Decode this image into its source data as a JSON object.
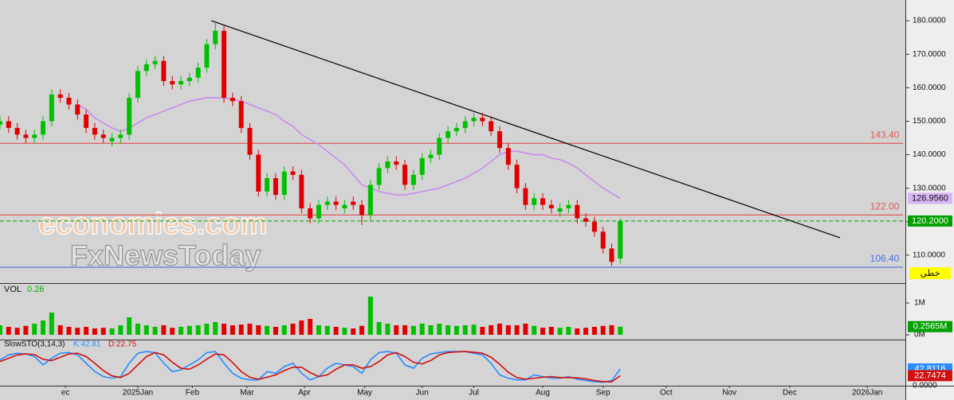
{
  "chart_data": [
    {
      "type": "candlestick",
      "x": [
        0,
        3,
        6,
        9,
        12,
        15,
        18,
        21,
        24,
        27,
        30,
        33,
        36,
        39,
        42,
        45,
        48,
        51,
        54,
        57,
        60,
        63,
        66,
        69,
        72,
        75,
        78,
        81,
        84,
        87,
        90,
        93,
        96,
        99,
        102,
        105,
        108,
        111,
        114,
        117,
        120,
        123,
        126,
        129,
        132,
        135,
        138,
        141,
        144,
        147,
        150,
        153,
        156,
        159,
        162,
        165,
        168,
        171,
        174,
        177,
        180,
        183,
        186,
        189,
        192,
        195,
        198,
        201,
        204,
        207,
        210,
        213,
        216
      ],
      "open": [
        149,
        150,
        148,
        146,
        145,
        146,
        150,
        158,
        157,
        155,
        152,
        148,
        146,
        144,
        145,
        146,
        157,
        165,
        167,
        168,
        162,
        161,
        162,
        163,
        166,
        173,
        177,
        157,
        156,
        148,
        140,
        129,
        133,
        128,
        135,
        134,
        124,
        121,
        125,
        126,
        124,
        126,
        125,
        122,
        131,
        136,
        138,
        137,
        131,
        134,
        139,
        140,
        145,
        147,
        148,
        150,
        151,
        150,
        147,
        142,
        137,
        130,
        125,
        127,
        125,
        123,
        124,
        125,
        121,
        120,
        117,
        112,
        109
      ],
      "high": [
        151.5,
        151.5,
        149.5,
        147.5,
        147.5,
        151.5,
        159.5,
        159.5,
        158.5,
        156.5,
        153.5,
        149.5,
        147.5,
        146.5,
        147.5,
        158.5,
        166.5,
        168.5,
        169.5,
        169.5,
        163.5,
        163.5,
        164.5,
        167.5,
        174.5,
        180,
        178.5,
        158.5,
        157.5,
        149.5,
        141.5,
        134.5,
        134.5,
        136.5,
        136.5,
        135.5,
        125.5,
        126.5,
        127.5,
        127.5,
        126.5,
        127.5,
        126.5,
        132.5,
        137.5,
        139.5,
        139.5,
        138.5,
        135.5,
        140.5,
        141.5,
        146.5,
        148.5,
        149.5,
        151.5,
        152.5,
        152.5,
        151.5,
        148.5,
        143.5,
        138.5,
        131.5,
        128.5,
        128.5,
        126.5,
        125.5,
        126.5,
        126.5,
        122.5,
        121.5,
        118.5,
        113.5,
        121
      ],
      "low": [
        147.5,
        146.5,
        144.5,
        143.5,
        143.5,
        144.5,
        148.5,
        155.5,
        153.5,
        150.5,
        146.5,
        144.5,
        143.5,
        142.5,
        143.5,
        144.5,
        155.5,
        163.5,
        165.5,
        160.5,
        159.5,
        159.5,
        160.5,
        161.5,
        164.5,
        171.5,
        155.5,
        154.5,
        146.5,
        138.5,
        127.5,
        127.5,
        126.5,
        126.5,
        132.5,
        122.5,
        119.5,
        119.5,
        123.5,
        123.5,
        122.5,
        123.5,
        119,
        120.5,
        129.5,
        134.5,
        135.5,
        129.5,
        129.5,
        132.5,
        137.5,
        138.5,
        143.5,
        145.5,
        146.5,
        148.5,
        148.5,
        145.5,
        140.5,
        135.5,
        128.5,
        123.5,
        123.5,
        123.5,
        122.5,
        121.5,
        122.5,
        119.5,
        118.5,
        115.5,
        110.5,
        106.8,
        107.5
      ],
      "close": [
        150,
        148,
        146,
        145,
        146,
        150,
        158,
        157,
        155,
        152,
        148,
        146,
        145,
        145,
        146,
        157,
        165,
        167,
        168,
        162,
        161,
        162,
        163,
        166,
        173,
        177,
        157,
        156,
        148,
        140,
        129,
        133,
        128,
        135,
        134,
        124,
        121,
        125,
        126,
        125,
        125,
        125,
        122,
        131,
        136,
        138,
        137,
        131,
        134,
        139,
        140,
        145,
        147,
        148,
        150,
        151,
        150,
        147,
        142,
        137,
        130,
        125,
        127,
        125,
        124,
        124,
        125,
        121,
        120,
        117,
        112,
        108,
        120.2
      ],
      "up_color": "#00c000",
      "down_color": "#e00000",
      "ma": {
        "color": "#c88cf0",
        "values": [
          null,
          null,
          null,
          null,
          null,
          null,
          null,
          null,
          null,
          155,
          153.5,
          151,
          149.5,
          148,
          147,
          148,
          149.5,
          151,
          152,
          153,
          154,
          155,
          156,
          156.5,
          157,
          157,
          157,
          156.5,
          156,
          155,
          154,
          153,
          152,
          150,
          148.5,
          146,
          144.5,
          143,
          141,
          139,
          137,
          134,
          131,
          130,
          129,
          128.5,
          128,
          128,
          128.5,
          129,
          129.5,
          130,
          131,
          132,
          133,
          134.5,
          136,
          138,
          140,
          141,
          141,
          140.5,
          140,
          140,
          139,
          138.5,
          137.5,
          136,
          134,
          132,
          130,
          128.5,
          126.956
        ]
      },
      "ma_marker": {
        "value": 126.956,
        "label": "126.9560",
        "color": "#d6b4f5"
      },
      "last_price": {
        "value": 120.2,
        "label": "120.2000",
        "color": "#00a000"
      },
      "levels": [
        {
          "value": 143.4,
          "label": "143.40",
          "color": "#e05a5a"
        },
        {
          "value": 122,
          "label": "122.00",
          "color": "#e05a5a"
        },
        {
          "value": 106.4,
          "label": "106.40",
          "color": "#4a6fe0"
        }
      ],
      "trendline": {
        "x": [
          73.6,
          292.5
        ],
        "y": [
          180,
          115.2
        ]
      },
      "mode_label": "خطي",
      "watermark": [
        "economies.com",
        "FxNewsToday"
      ],
      "xlim": [
        0,
        315
      ],
      "ylim": [
        101.9,
        186.2
      ],
      "yticks": [
        {
          "value": 110,
          "label": "110.0000"
        },
        {
          "value": 120,
          "label": "120.0000"
        },
        {
          "value": 130,
          "label": "130.0000"
        },
        {
          "value": 140,
          "label": "140.0000"
        },
        {
          "value": 150,
          "label": "150.0000"
        },
        {
          "value": 160,
          "label": "160.0000"
        },
        {
          "value": 170,
          "label": "170.0000"
        },
        {
          "value": 180,
          "label": "180.0000"
        }
      ],
      "xticks": [
        {
          "value": 22.8,
          "label": "ec"
        },
        {
          "value": 48,
          "label": "2025Jan"
        },
        {
          "value": 67,
          "label": "Feb"
        },
        {
          "value": 86,
          "label": "Mar"
        },
        {
          "value": 106,
          "label": "Apr"
        },
        {
          "value": 127,
          "label": "May"
        },
        {
          "value": 147,
          "label": "Jun"
        },
        {
          "value": 165,
          "label": "Jul"
        },
        {
          "value": 189,
          "label": "Aug"
        },
        {
          "value": 210,
          "label": "Sep"
        },
        {
          "value": 232,
          "label": "Oct"
        },
        {
          "value": 254,
          "label": "Nov"
        },
        {
          "value": 275,
          "label": "Dec"
        },
        {
          "value": 302,
          "label": "2026Jan"
        }
      ]
    },
    {
      "type": "bar",
      "title": "VOL",
      "current_label": "0.26",
      "values": [
        0.3,
        0.25,
        0.22,
        0.28,
        0.35,
        0.45,
        0.7,
        0.3,
        0.25,
        0.22,
        0.25,
        0.2,
        0.22,
        0.2,
        0.3,
        0.55,
        0.35,
        0.3,
        0.25,
        0.3,
        0.22,
        0.25,
        0.28,
        0.3,
        0.35,
        0.4,
        0.35,
        0.3,
        0.32,
        0.35,
        0.3,
        0.28,
        0.25,
        0.3,
        0.35,
        0.45,
        0.5,
        0.3,
        0.28,
        0.25,
        0.22,
        0.2,
        0.28,
        1.2,
        0.4,
        0.35,
        0.3,
        0.3,
        0.28,
        0.35,
        0.3,
        0.35,
        0.3,
        0.28,
        0.3,
        0.32,
        0.25,
        0.3,
        0.35,
        0.3,
        0.3,
        0.35,
        0.28,
        0.22,
        0.25,
        0.22,
        0.25,
        0.2,
        0.22,
        0.25,
        0.28,
        0.3,
        0.2565
      ],
      "ylim": [
        0,
        1.575
      ],
      "yticks": [
        {
          "value": 1,
          "label": "1M"
        },
        {
          "value": 0,
          "label": "0M"
        }
      ],
      "marker": {
        "value": 0.2565,
        "label": "0.2565M",
        "color": "#00a000"
      }
    },
    {
      "type": "line",
      "title": "SlowSTO(3,14,3)",
      "series": [
        {
          "name": "K:42.81",
          "color": "#2a8cff",
          "values": [
            70,
            85,
            90,
            88,
            80,
            55,
            75,
            90,
            92,
            85,
            60,
            35,
            20,
            15,
            20,
            60,
            90,
            95,
            92,
            60,
            35,
            40,
            55,
            70,
            92,
            95,
            60,
            30,
            15,
            10,
            10,
            35,
            30,
            50,
            60,
            30,
            10,
            20,
            45,
            60,
            55,
            50,
            30,
            70,
            92,
            95,
            90,
            55,
            45,
            75,
            88,
            92,
            95,
            95,
            95,
            90,
            85,
            60,
            25,
            15,
            10,
            10,
            25,
            20,
            15,
            15,
            20,
            12,
            8,
            5,
            3,
            8,
            42.8116
          ]
        },
        {
          "name": "D:22.75",
          "color": "#d01010",
          "values": [
            65,
            75,
            85,
            88,
            86,
            72,
            68,
            78,
            88,
            90,
            80,
            60,
            38,
            22,
            17,
            30,
            55,
            80,
            92,
            85,
            63,
            45,
            42,
            55,
            72,
            88,
            85,
            62,
            35,
            18,
            12,
            18,
            25,
            38,
            48,
            48,
            32,
            20,
            25,
            42,
            55,
            55,
            45,
            50,
            65,
            85,
            92,
            80,
            63,
            58,
            68,
            85,
            92,
            94,
            95,
            93,
            90,
            78,
            57,
            33,
            17,
            12,
            15,
            18,
            20,
            17,
            17,
            16,
            13,
            8,
            5,
            4,
            22.7474
          ]
        }
      ],
      "markers": [
        {
          "value": 42.8116,
          "label": "42.8116",
          "color": "#2a8cff"
        },
        {
          "value": 22.7474,
          "label": "22.7474",
          "color": "#d01010"
        }
      ],
      "ylim": [
        -5,
        100
      ],
      "yticks": [
        {
          "value": 0,
          "label": "0.0000"
        }
      ]
    }
  ]
}
